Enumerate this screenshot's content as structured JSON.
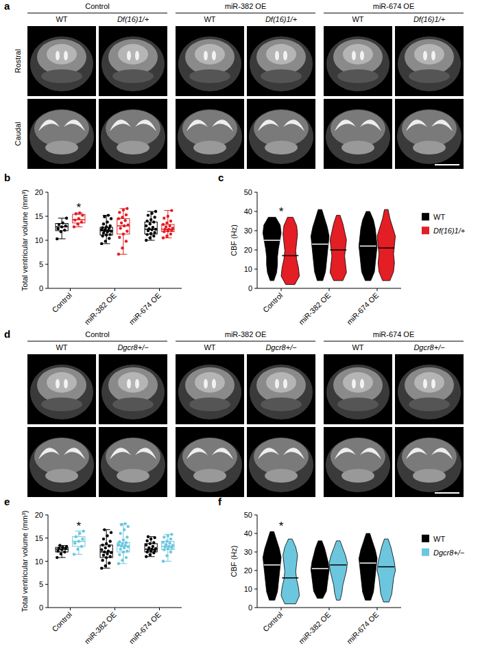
{
  "image_panels": [
    {
      "panel": "a",
      "groups": [
        {
          "title": "Control",
          "columns": [
            "WT",
            "Df(16)1/+"
          ]
        },
        {
          "title": "miR-382 OE",
          "columns": [
            "WT",
            "Df(16)1/+"
          ]
        },
        {
          "title": "miR-674 OE",
          "columns": [
            "WT",
            "Df(16)1/+"
          ]
        }
      ],
      "rows": [
        "Rostral",
        "Caudal"
      ]
    },
    {
      "panel": "d",
      "groups": [
        {
          "title": "Control",
          "columns": [
            "WT",
            "Dgcr8+/−"
          ]
        },
        {
          "title": "miR-382 OE",
          "columns": [
            "WT",
            "Dgcr8+/−"
          ]
        },
        {
          "title": "miR-674 OE",
          "columns": [
            "WT",
            "Dgcr8+/−"
          ]
        }
      ],
      "rows": [
        null,
        null
      ]
    }
  ],
  "chart_data": [
    {
      "type": "box",
      "panel": "b",
      "y_label": "Total ventricular volume (mm³)",
      "categories": [
        "Control",
        "miR-382 OE",
        "miR-674 OE"
      ],
      "ylim": [
        0,
        20
      ],
      "yticks": [
        0,
        5,
        10,
        15,
        20
      ],
      "annotations": [
        {
          "text": "*",
          "category": 0,
          "series": 1
        }
      ],
      "series": [
        {
          "name": "WT",
          "color": "#000000",
          "values": [
            [
              10.3,
              11.8,
              12.1,
              12.4,
              12.8,
              13.0,
              13.3,
              13.6,
              14.6
            ],
            [
              9.3,
              9.8,
              10.4,
              10.9,
              11.1,
              11.2,
              11.5,
              11.7,
              11.9,
              12.0,
              12.0,
              12.2,
              12.3,
              12.5,
              12.6,
              12.8,
              13.0,
              13.4,
              13.8,
              14.5,
              14.9,
              15.2
            ],
            [
              10.0,
              10.5,
              10.9,
              11.2,
              11.4,
              11.6,
              12.0,
              12.2,
              12.3,
              12.4,
              12.7,
              13.0,
              13.4,
              13.8,
              14.0,
              14.3,
              14.8,
              15.2,
              15.6,
              16.0
            ]
          ],
          "stats": [
            {
              "min": 10.3,
              "q1": 12.0,
              "median": 12.8,
              "q3": 13.5,
              "max": 14.6
            },
            {
              "min": 9.3,
              "q1": 11.1,
              "median": 12.0,
              "q3": 12.7,
              "max": 15.2
            },
            {
              "min": 10.0,
              "q1": 11.3,
              "median": 12.3,
              "q3": 13.8,
              "max": 16.0
            }
          ]
        },
        {
          "name": "Df(16)1/+",
          "color": "#e31e24",
          "values": [
            [
              12.8,
              13.4,
              13.8,
              14.2,
              14.5,
              15.2,
              15.5,
              15.7
            ],
            [
              7.1,
              8.4,
              9.8,
              10.6,
              11.3,
              11.9,
              12.5,
              13.0,
              13.2,
              13.6,
              14.1,
              14.5,
              14.8,
              15.3,
              15.8,
              16.3,
              16.6
            ],
            [
              10.5,
              10.9,
              11.3,
              11.8,
              12.0,
              12.1,
              12.3,
              12.3,
              12.5,
              12.8,
              13.0,
              13.3,
              13.6,
              14.0,
              14.6,
              15.0,
              16.2
            ]
          ],
          "stats": [
            {
              "min": 12.8,
              "q1": 13.6,
              "median": 14.3,
              "q3": 15.4,
              "max": 15.7
            },
            {
              "min": 7.1,
              "q1": 11.3,
              "median": 13.0,
              "q3": 14.5,
              "max": 16.6
            },
            {
              "min": 10.5,
              "q1": 11.8,
              "median": 12.3,
              "q3": 13.3,
              "max": 16.2
            }
          ]
        }
      ]
    },
    {
      "type": "violin",
      "panel": "c",
      "y_label": "CBF (Hz)",
      "legend": "right",
      "categories": [
        "Control",
        "miR-382 OE",
        "miR-674 OE"
      ],
      "ylim": [
        0,
        50
      ],
      "yticks": [
        0,
        10,
        20,
        30,
        40,
        50
      ],
      "annotations": [
        {
          "text": "*",
          "category": 0
        }
      ],
      "series": [
        {
          "name": "WT",
          "color": "#000000",
          "values": [
            25,
            23,
            22
          ],
          "min": [
            4,
            4,
            4
          ],
          "max": [
            37,
            41,
            40
          ],
          "profile": [
            [
              0.2,
              0.5,
              0.6,
              0.6,
              0.7,
              0.85,
              1.0,
              0.9,
              0.4
            ],
            [
              0.3,
              0.6,
              0.7,
              0.8,
              0.9,
              1.0,
              0.8,
              0.5,
              0.2
            ],
            [
              0.3,
              0.7,
              0.8,
              0.9,
              1.0,
              0.9,
              0.8,
              0.6,
              0.2
            ]
          ]
        },
        {
          "name": "Df(16)1/+",
          "color": "#e31e24",
          "values": [
            17,
            20,
            21
          ],
          "min": [
            2,
            4,
            4
          ],
          "max": [
            37,
            38,
            41
          ],
          "profile": [
            [
              0.5,
              1.0,
              0.9,
              0.7,
              0.6,
              0.7,
              0.8,
              0.7,
              0.3
            ],
            [
              0.5,
              0.9,
              0.8,
              0.7,
              0.8,
              0.9,
              0.7,
              0.5,
              0.2
            ],
            [
              0.4,
              0.8,
              0.9,
              0.8,
              0.9,
              1.0,
              0.7,
              0.4,
              0.2
            ]
          ]
        }
      ]
    },
    {
      "type": "box",
      "panel": "e",
      "y_label": "Total ventricular volume (mm³)",
      "categories": [
        "Control",
        "miR-382 OE",
        "miR-674 OE"
      ],
      "ylim": [
        0,
        20
      ],
      "yticks": [
        0,
        5,
        10,
        15,
        20
      ],
      "annotations": [
        {
          "text": "*",
          "category": 0,
          "series": 1
        }
      ],
      "series": [
        {
          "name": "WT",
          "color": "#000000",
          "values": [
            [
              10.8,
              11.6,
              12.0,
              12.2,
              12.5,
              12.7,
              12.8,
              13.0,
              13.2,
              13.4
            ],
            [
              8.5,
              9.0,
              9.6,
              10.2,
              10.8,
              11.0,
              11.3,
              11.6,
              11.9,
              12.0,
              12.2,
              12.5,
              12.9,
              13.3,
              13.5,
              13.8,
              14.3,
              14.8,
              15.5,
              16.2,
              16.8
            ],
            [
              11.0,
              11.4,
              11.8,
              12.0,
              12.2,
              12.3,
              12.5,
              12.6,
              12.7,
              12.9,
              13.2,
              13.5,
              13.8,
              14.0,
              14.4,
              14.8,
              15.1,
              15.3
            ]
          ],
          "stats": [
            {
              "min": 10.8,
              "q1": 12.0,
              "median": 12.6,
              "q3": 13.0,
              "max": 13.4
            },
            {
              "min": 8.5,
              "q1": 10.8,
              "median": 12.0,
              "q3": 13.5,
              "max": 16.8
            },
            {
              "min": 11.0,
              "q1": 12.0,
              "median": 12.6,
              "q3": 13.8,
              "max": 15.3
            }
          ]
        },
        {
          "name": "Dgcr8+/−",
          "color": "#6cc7de",
          "values": [
            [
              11.5,
              12.6,
              13.2,
              13.9,
              14.3,
              14.8,
              15.3,
              16.0,
              16.5
            ],
            [
              9.5,
              10.2,
              10.8,
              11.4,
              12.0,
              12.2,
              12.6,
              12.9,
              13.1,
              13.3,
              13.4,
              13.6,
              13.8,
              14.0,
              14.2,
              14.6,
              15.2,
              16.0,
              16.8,
              17.5,
              17.9,
              18.1
            ],
            [
              10.0,
              11.2,
              12.0,
              12.5,
              12.7,
              12.9,
              13.1,
              13.2,
              13.4,
              13.6,
              13.9,
              14.1,
              14.3,
              14.8,
              15.2,
              15.5,
              15.8
            ]
          ],
          "stats": [
            {
              "min": 11.5,
              "q1": 13.2,
              "median": 14.3,
              "q3": 15.3,
              "max": 16.5
            },
            {
              "min": 9.5,
              "q1": 12.0,
              "median": 13.3,
              "q3": 14.0,
              "max": 18.1
            },
            {
              "min": 10.0,
              "q1": 12.5,
              "median": 13.2,
              "q3": 14.3,
              "max": 15.8
            }
          ]
        }
      ]
    },
    {
      "type": "violin",
      "panel": "f",
      "y_label": "CBF (Hz)",
      "legend": "right",
      "categories": [
        "Control",
        "miR-382 OE",
        "miR-674 OE"
      ],
      "ylim": [
        0,
        50
      ],
      "yticks": [
        0,
        10,
        20,
        30,
        40,
        50
      ],
      "annotations": [
        {
          "text": "*",
          "category": 0
        }
      ],
      "series": [
        {
          "name": "WT",
          "color": "#000000",
          "values": [
            23,
            21,
            24
          ],
          "min": [
            4,
            5,
            4
          ],
          "max": [
            41,
            36,
            40
          ],
          "profile": [
            [
              0.3,
              0.6,
              0.7,
              0.8,
              0.9,
              1.0,
              0.8,
              0.5,
              0.2
            ],
            [
              0.3,
              0.7,
              0.8,
              0.9,
              1.0,
              0.9,
              0.7,
              0.5,
              0.2
            ],
            [
              0.3,
              0.6,
              0.7,
              0.8,
              0.9,
              1.0,
              0.8,
              0.5,
              0.2
            ]
          ]
        },
        {
          "name": "Dgcr8+/−",
          "color": "#6cc7de",
          "values": [
            16,
            23,
            22
          ],
          "min": [
            2,
            4,
            3
          ],
          "max": [
            37,
            36,
            37
          ],
          "profile": [
            [
              0.6,
              1.0,
              0.9,
              0.7,
              0.6,
              0.7,
              0.8,
              0.6,
              0.2
            ],
            [
              0.2,
              0.4,
              0.5,
              0.7,
              0.9,
              1.0,
              0.8,
              0.5,
              0.2
            ],
            [
              0.3,
              0.6,
              0.7,
              0.8,
              1.0,
              0.9,
              0.7,
              0.5,
              0.2
            ]
          ]
        }
      ]
    }
  ]
}
